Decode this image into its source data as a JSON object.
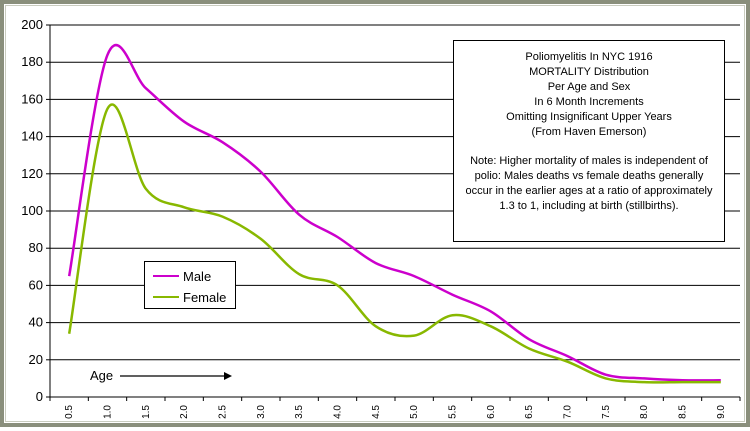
{
  "chart_data": {
    "type": "line",
    "title": "",
    "xlabel": "Age",
    "ylabel": "",
    "ylim": [
      0,
      200
    ],
    "y_ticks": [
      0,
      20,
      40,
      60,
      80,
      100,
      120,
      140,
      160,
      180,
      200
    ],
    "x_ticks": [
      "0.5",
      "1.0",
      "1.5",
      "2.0",
      "2.5",
      "3.0",
      "3.5",
      "4.0",
      "4.5",
      "5.0",
      "5.5",
      "6.0",
      "6.5",
      "7.0",
      "7.5",
      "8.0",
      "8.5",
      "9.0"
    ],
    "grid": "horizontal",
    "legend_placement": "center-left",
    "series": [
      {
        "name": "Male",
        "color": "#cc00cc",
        "x": [
          0.5,
          1.0,
          1.5,
          2.0,
          2.5,
          3.0,
          3.5,
          4.0,
          4.5,
          5.0,
          5.5,
          6.0,
          6.5,
          7.0,
          7.5,
          8.0,
          8.5,
          9.0
        ],
        "values": [
          65,
          184,
          166,
          148,
          137,
          121,
          98,
          86,
          72,
          65,
          55,
          46,
          31,
          22,
          12,
          10,
          9,
          9
        ]
      },
      {
        "name": "Female",
        "color": "#88b800",
        "x": [
          0.5,
          1.0,
          1.5,
          2.0,
          2.5,
          3.0,
          3.5,
          4.0,
          4.5,
          5.0,
          5.5,
          6.0,
          6.5,
          7.0,
          7.5,
          8.0,
          8.5,
          9.0
        ],
        "values": [
          34,
          155,
          112,
          102,
          97,
          85,
          66,
          60,
          38,
          33,
          44,
          38,
          26,
          19,
          10,
          8,
          8,
          8
        ]
      }
    ]
  },
  "info_box": {
    "title_lines": [
      "Poliomyelitis In NYC 1916",
      "MORTALITY Distribution",
      "Per Age and Sex",
      "In 6 Month Increments",
      "Omitting Insignificant Upper Years",
      "(From Haven Emerson)"
    ],
    "note": "Note: Higher mortality of males is independent of polio: Males deaths vs female deaths generally occur in the earlier ages at a ratio of approximately 1.3 to 1, including at birth (stillbirths)."
  },
  "legend": {
    "male": "Male",
    "female": "Female"
  },
  "age_label": "Age"
}
